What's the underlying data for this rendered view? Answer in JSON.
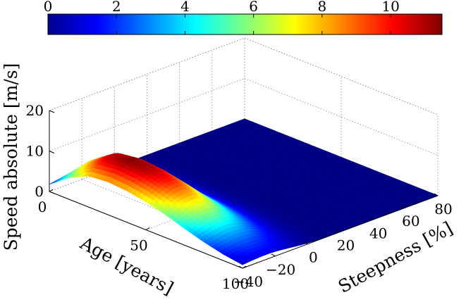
{
  "chart_data": {
    "type": "surface",
    "colormap": "jet",
    "grid": true,
    "colorbar": {
      "placement": "top",
      "range": [
        0,
        11.5
      ],
      "ticks": [
        "0",
        "2",
        "4",
        "6",
        "8",
        "10"
      ]
    },
    "axes": {
      "x": {
        "label": "Age [years]",
        "range": [
          0,
          100
        ],
        "ticks": [
          "0",
          "50",
          "100"
        ]
      },
      "y": {
        "label": "Steepness [%]",
        "range": [
          -40,
          80
        ],
        "ticks": [
          "−40",
          "−20",
          "0",
          "20",
          "40",
          "60",
          "80"
        ]
      },
      "z": {
        "label": "Speed absolute [m/s]",
        "range": [
          0,
          20
        ],
        "ticks": [
          "0",
          "10",
          "20"
        ]
      }
    },
    "surface_profile": {
      "description_of_values": "speed (m/s) vs age at the steepness of maximum speed; speed decays with steepness magnitude",
      "age": [
        0,
        10,
        20,
        30,
        40,
        50,
        60,
        70,
        80,
        90,
        100
      ],
      "peak_speed": [
        2.5,
        7.5,
        10.8,
        11.5,
        11.0,
        9.8,
        8.0,
        5.8,
        3.8,
        2.2,
        1.2
      ],
      "peak_steepness": -25
    }
  }
}
